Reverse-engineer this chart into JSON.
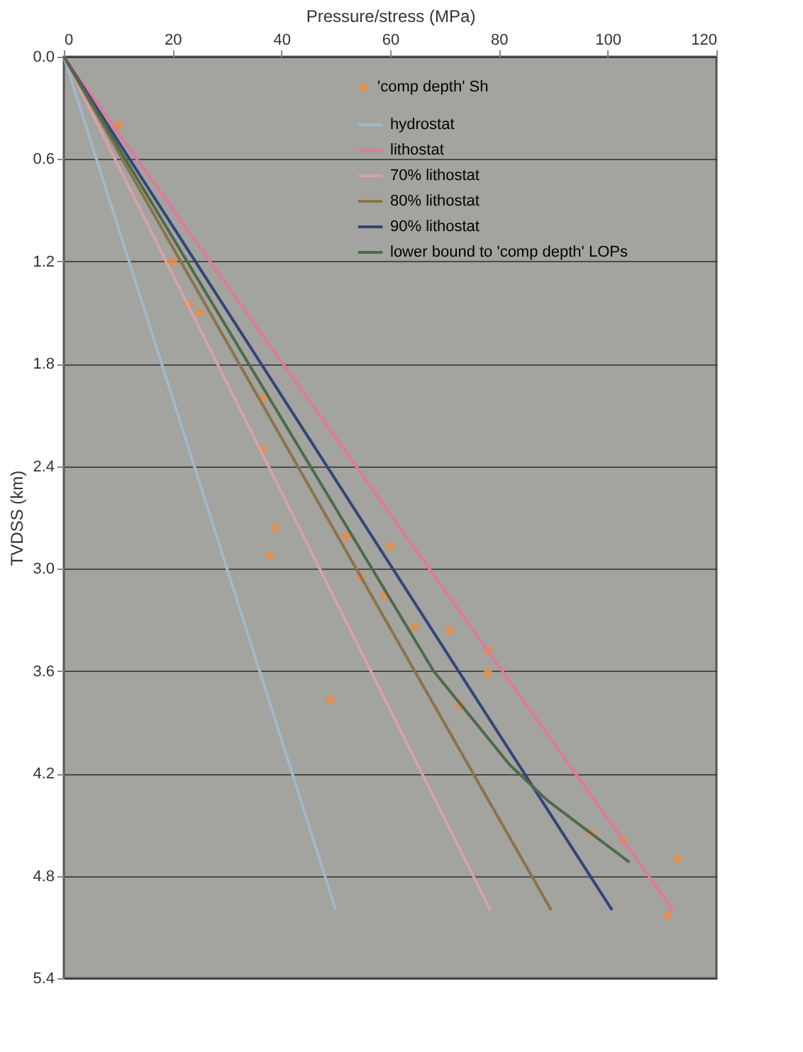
{
  "chart_data": {
    "type": "line",
    "xlabel": "Pressure/stress (MPa)",
    "ylabel": "TVDSS (km)",
    "xlim": [
      0,
      120
    ],
    "xticks": [
      0,
      20,
      40,
      60,
      80,
      100,
      120
    ],
    "ylim": [
      5.4,
      0
    ],
    "yticks": [
      {
        "value": 0,
        "label": "0.0"
      },
      0.6,
      1.2,
      1.8,
      2.4,
      {
        "value": 3,
        "label": "3.0"
      },
      3.6,
      4.2,
      4.8,
      5.4
    ],
    "grid": "y",
    "legend": "top right",
    "line_style": "solid",
    "series": [
      {
        "name": "'comp depth' Sh",
        "type": "scatter",
        "marker": "circle",
        "color": "#e09050",
        "x": [
          10,
          20,
          23,
          25,
          36.5,
          36.5,
          39,
          37.8,
          51.9,
          60,
          54.6,
          59,
          64.5,
          71,
          78,
          78,
          72.8,
          49,
          97,
          102.8,
          112.8,
          111
        ],
        "values": [
          0.4,
          1.2,
          1.45,
          1.5,
          2.0,
          2.3,
          2.76,
          2.92,
          2.81,
          2.87,
          3.05,
          3.16,
          3.34,
          3.36,
          3.48,
          3.61,
          3.8,
          3.77,
          4.55,
          4.59,
          4.7,
          5.03
        ]
      },
      {
        "name": "hydrostat",
        "color": "#9fb8cc",
        "x": [
          0,
          50
        ],
        "values": [
          0,
          5.0
        ]
      },
      {
        "name": "lithostat",
        "color": "#e07a9a",
        "x": [
          0,
          112
        ],
        "values": [
          0,
          5.0
        ]
      },
      {
        "name": "70% lithostat",
        "color": "#d9a0a8",
        "x": [
          0,
          78.4
        ],
        "values": [
          0,
          5.0
        ]
      },
      {
        "name": "80% lithostat",
        "color": "#8a7448",
        "x": [
          0,
          89.6
        ],
        "values": [
          0,
          5.0
        ]
      },
      {
        "name": "90% lithostat",
        "color": "#34447a",
        "x": [
          0,
          100.8
        ],
        "values": [
          0,
          5.0
        ]
      },
      {
        "name": "lower bound to 'comp depth' LOPs",
        "color": "#4d6b4a",
        "x": [
          0,
          68,
          82,
          89,
          104
        ],
        "values": [
          0,
          3.6,
          4.15,
          4.36,
          4.72
        ]
      }
    ]
  }
}
